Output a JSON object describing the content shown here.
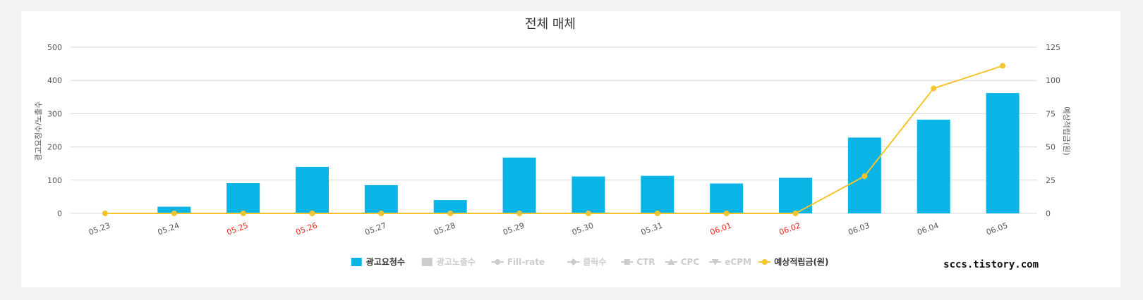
{
  "chart_data": {
    "type": "bar",
    "title": "전체 매체",
    "categories": [
      "05.23",
      "05.24",
      "05.25",
      "05.26",
      "05.27",
      "05.28",
      "05.29",
      "05.30",
      "05.31",
      "06.01",
      "06.02",
      "06.03",
      "06.04",
      "06.05"
    ],
    "holiday_categories": [
      "05.25",
      "05.26",
      "06.01",
      "06.02"
    ],
    "ylabel_left": "광고요청수/노출수",
    "ylabel_right": "예상적립금(원)",
    "ylim_left": [
      0,
      500
    ],
    "ylim_right": [
      0,
      125
    ],
    "yticks_left": [
      "0",
      "100",
      "200",
      "300",
      "400",
      "500"
    ],
    "yticks_right": [
      "0",
      "25",
      "50",
      "75",
      "100",
      "125"
    ],
    "grid": true,
    "legend_position": "bottom",
    "series": [
      {
        "name": "광고요청수",
        "type": "bar",
        "axis": "left",
        "color": "#0ab4e6",
        "active": true,
        "values": [
          0,
          20,
          91,
          140,
          85,
          40,
          168,
          111,
          113,
          90,
          107,
          228,
          282,
          362
        ]
      },
      {
        "name": "예상적립금(원)",
        "type": "line",
        "axis": "right",
        "color": "#f5c42c",
        "active": true,
        "values": [
          0,
          0,
          0,
          0,
          0,
          0,
          0,
          0,
          0,
          0,
          0,
          28,
          94,
          111
        ]
      }
    ],
    "legend": [
      {
        "name": "광고요청수",
        "marker": "square",
        "color": "#0ab4e6",
        "active": true
      },
      {
        "name": "광고노출수",
        "marker": "square",
        "color": "#cccccc",
        "active": false
      },
      {
        "name": "Fill-rate",
        "marker": "circle-line",
        "color": "#cccccc",
        "active": false
      },
      {
        "name": "클릭수",
        "marker": "diamond-line",
        "color": "#cccccc",
        "active": false
      },
      {
        "name": "CTR",
        "marker": "square-line",
        "color": "#cccccc",
        "active": false
      },
      {
        "name": "CPC",
        "marker": "triangle-line",
        "color": "#cccccc",
        "active": false
      },
      {
        "name": "eCPM",
        "marker": "triangle-down-line",
        "color": "#cccccc",
        "active": false
      },
      {
        "name": "예상적립금(원)",
        "marker": "circle-line",
        "color": "#f5c42c",
        "active": true
      }
    ]
  },
  "watermark": "sccs.tistory.com",
  "colors": {
    "grid": "#d8d8d8",
    "tick": "#555555",
    "holiday": "#e8291c",
    "inactive_text": "#cccccc",
    "active_text": "#333333"
  }
}
